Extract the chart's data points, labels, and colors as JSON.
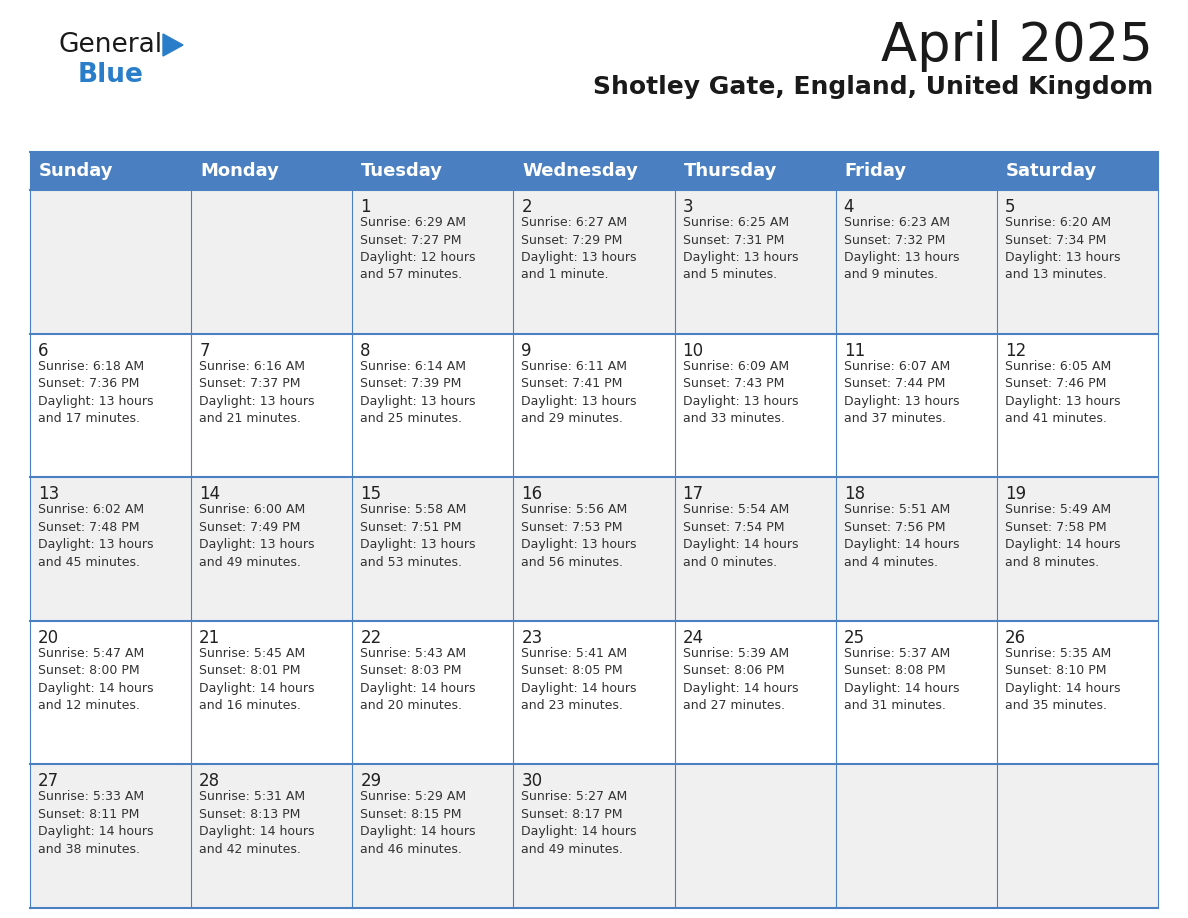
{
  "title": "April 2025",
  "subtitle": "Shotley Gate, England, United Kingdom",
  "header_bg": "#4a7fc1",
  "header_text_color": "#ffffff",
  "row_bg_colors": [
    "#f0f0f0",
    "#ffffff",
    "#f0f0f0",
    "#ffffff",
    "#f0f0f0"
  ],
  "cell_border_color": "#4a7fc1",
  "day_headers": [
    "Sunday",
    "Monday",
    "Tuesday",
    "Wednesday",
    "Thursday",
    "Friday",
    "Saturday"
  ],
  "calendar_data": [
    [
      "",
      "",
      "1\nSunrise: 6:29 AM\nSunset: 7:27 PM\nDaylight: 12 hours\nand 57 minutes.",
      "2\nSunrise: 6:27 AM\nSunset: 7:29 PM\nDaylight: 13 hours\nand 1 minute.",
      "3\nSunrise: 6:25 AM\nSunset: 7:31 PM\nDaylight: 13 hours\nand 5 minutes.",
      "4\nSunrise: 6:23 AM\nSunset: 7:32 PM\nDaylight: 13 hours\nand 9 minutes.",
      "5\nSunrise: 6:20 AM\nSunset: 7:34 PM\nDaylight: 13 hours\nand 13 minutes."
    ],
    [
      "6\nSunrise: 6:18 AM\nSunset: 7:36 PM\nDaylight: 13 hours\nand 17 minutes.",
      "7\nSunrise: 6:16 AM\nSunset: 7:37 PM\nDaylight: 13 hours\nand 21 minutes.",
      "8\nSunrise: 6:14 AM\nSunset: 7:39 PM\nDaylight: 13 hours\nand 25 minutes.",
      "9\nSunrise: 6:11 AM\nSunset: 7:41 PM\nDaylight: 13 hours\nand 29 minutes.",
      "10\nSunrise: 6:09 AM\nSunset: 7:43 PM\nDaylight: 13 hours\nand 33 minutes.",
      "11\nSunrise: 6:07 AM\nSunset: 7:44 PM\nDaylight: 13 hours\nand 37 minutes.",
      "12\nSunrise: 6:05 AM\nSunset: 7:46 PM\nDaylight: 13 hours\nand 41 minutes."
    ],
    [
      "13\nSunrise: 6:02 AM\nSunset: 7:48 PM\nDaylight: 13 hours\nand 45 minutes.",
      "14\nSunrise: 6:00 AM\nSunset: 7:49 PM\nDaylight: 13 hours\nand 49 minutes.",
      "15\nSunrise: 5:58 AM\nSunset: 7:51 PM\nDaylight: 13 hours\nand 53 minutes.",
      "16\nSunrise: 5:56 AM\nSunset: 7:53 PM\nDaylight: 13 hours\nand 56 minutes.",
      "17\nSunrise: 5:54 AM\nSunset: 7:54 PM\nDaylight: 14 hours\nand 0 minutes.",
      "18\nSunrise: 5:51 AM\nSunset: 7:56 PM\nDaylight: 14 hours\nand 4 minutes.",
      "19\nSunrise: 5:49 AM\nSunset: 7:58 PM\nDaylight: 14 hours\nand 8 minutes."
    ],
    [
      "20\nSunrise: 5:47 AM\nSunset: 8:00 PM\nDaylight: 14 hours\nand 12 minutes.",
      "21\nSunrise: 5:45 AM\nSunset: 8:01 PM\nDaylight: 14 hours\nand 16 minutes.",
      "22\nSunrise: 5:43 AM\nSunset: 8:03 PM\nDaylight: 14 hours\nand 20 minutes.",
      "23\nSunrise: 5:41 AM\nSunset: 8:05 PM\nDaylight: 14 hours\nand 23 minutes.",
      "24\nSunrise: 5:39 AM\nSunset: 8:06 PM\nDaylight: 14 hours\nand 27 minutes.",
      "25\nSunrise: 5:37 AM\nSunset: 8:08 PM\nDaylight: 14 hours\nand 31 minutes.",
      "26\nSunrise: 5:35 AM\nSunset: 8:10 PM\nDaylight: 14 hours\nand 35 minutes."
    ],
    [
      "27\nSunrise: 5:33 AM\nSunset: 8:11 PM\nDaylight: 14 hours\nand 38 minutes.",
      "28\nSunrise: 5:31 AM\nSunset: 8:13 PM\nDaylight: 14 hours\nand 42 minutes.",
      "29\nSunrise: 5:29 AM\nSunset: 8:15 PM\nDaylight: 14 hours\nand 46 minutes.",
      "30\nSunrise: 5:27 AM\nSunset: 8:17 PM\nDaylight: 14 hours\nand 49 minutes.",
      "",
      "",
      ""
    ]
  ],
  "logo_color_general": "#1a1a1a",
  "logo_color_blue": "#2a7dc9",
  "logo_triangle_color": "#2a7dc9",
  "title_fontsize": 38,
  "subtitle_fontsize": 18,
  "header_fontsize": 13,
  "day_num_fontsize": 12,
  "cell_text_fontsize": 9
}
